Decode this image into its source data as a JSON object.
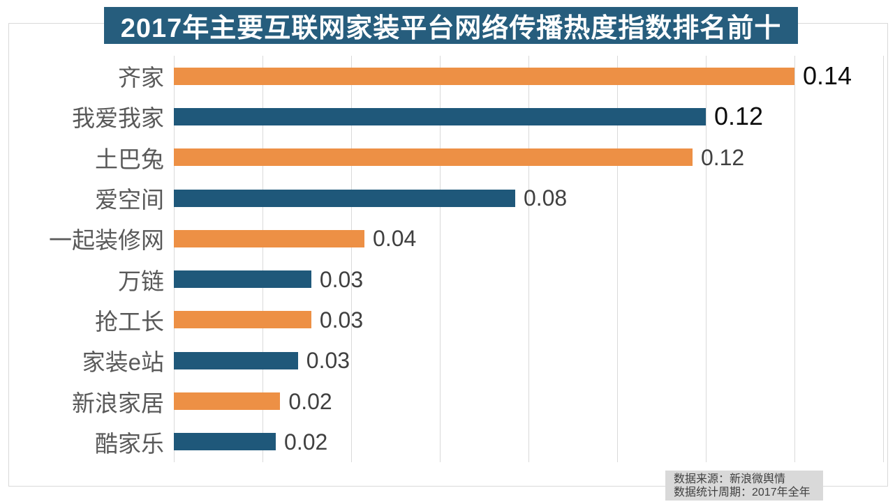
{
  "title": {
    "text": "2017年主要互联网家装平台网络传播热度指数排名前十",
    "bg_color": "#265D7D",
    "text_color": "#FFFFFF"
  },
  "footer": {
    "line1": "数据来源：新浪微舆情",
    "line2": "数据统计周期：2017年全年",
    "bg_color": "#D9D9D9",
    "text_color": "#404040"
  },
  "chart_data": {
    "type": "bar",
    "orientation": "horizontal",
    "title": "2017年主要互联网家装平台网络传播热度指数排名前十",
    "categories": [
      "齐家",
      "我爱我家",
      "土巴兔",
      "爱空间",
      "一起装修网",
      "万链",
      "抢工长",
      "家装e站",
      "新浪家居",
      "酷家乐"
    ],
    "values": [
      0.14,
      0.12,
      0.12,
      0.08,
      0.04,
      0.03,
      0.03,
      0.03,
      0.02,
      0.02
    ],
    "value_labels": [
      "0.14",
      "0.12",
      "0.12",
      "0.08",
      "0.04",
      "0.03",
      "0.03",
      "0.03",
      "0.02",
      "0.02"
    ],
    "bar_values_estimated": [
      0.14,
      0.12,
      0.117,
      0.077,
      0.043,
      0.031,
      0.031,
      0.028,
      0.024,
      0.023
    ],
    "bar_colors": [
      "#ED9045",
      "#1F587A",
      "#ED9045",
      "#1F587A",
      "#ED9045",
      "#1F587A",
      "#ED9045",
      "#1F587A",
      "#ED9045",
      "#1F587A"
    ],
    "value_label_style": [
      "strong",
      "strong",
      "normal",
      "normal",
      "normal",
      "normal",
      "normal",
      "normal",
      "normal",
      "normal"
    ],
    "value_label_colors": {
      "strong": "#0D0D0D",
      "normal": "#404040"
    },
    "category_label_color": "#595959",
    "gridline_color": "#D9D9D9",
    "panel_border_color": "#D9D9D9",
    "xlim": [
      0,
      0.16
    ],
    "grid_step": 0.02,
    "grid": true,
    "legend": false,
    "xlabel": "",
    "ylabel": ""
  }
}
